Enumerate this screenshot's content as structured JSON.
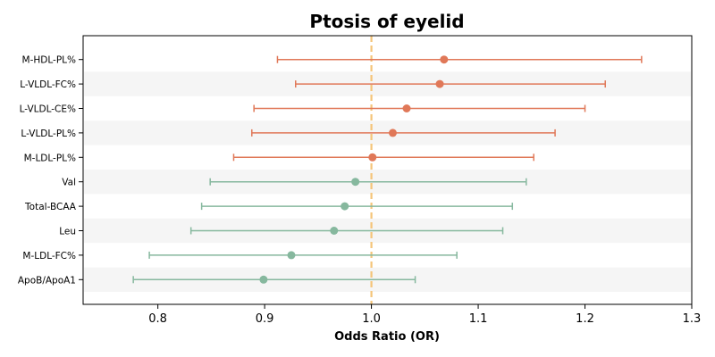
{
  "chart_data": {
    "type": "forest",
    "title": "Ptosis of eyelid",
    "xlabel": "Odds Ratio (OR)",
    "ylabel": "",
    "xlim": [
      0.73,
      1.3
    ],
    "xticks": [
      0.8,
      0.9,
      1.0,
      1.1,
      1.2,
      1.3
    ],
    "xtick_labels": [
      "0.8",
      "0.9",
      "1.0",
      "1.1",
      "1.2",
      "1.3"
    ],
    "reference_line": 1.0,
    "reference_line_color": "#f5c57a",
    "colors": {
      "positive": "#e07858",
      "negative": "#86b89e",
      "band": "#f5f5f5"
    },
    "rows": [
      {
        "label": "M-HDL-PL%",
        "or": 1.068,
        "lower": 0.912,
        "upper": 1.253,
        "group": "positive"
      },
      {
        "label": "L-VLDL-FC%",
        "or": 1.064,
        "lower": 0.929,
        "upper": 1.219,
        "group": "positive"
      },
      {
        "label": "L-VLDL-CE%",
        "or": 1.033,
        "lower": 0.89,
        "upper": 1.2,
        "group": "positive"
      },
      {
        "label": "L-VLDL-PL%",
        "or": 1.02,
        "lower": 0.888,
        "upper": 1.172,
        "group": "positive"
      },
      {
        "label": "M-LDL-PL%",
        "or": 1.001,
        "lower": 0.871,
        "upper": 1.152,
        "group": "positive"
      },
      {
        "label": "Val",
        "or": 0.985,
        "lower": 0.849,
        "upper": 1.145,
        "group": "negative"
      },
      {
        "label": "Total-BCAA",
        "or": 0.975,
        "lower": 0.841,
        "upper": 1.132,
        "group": "negative"
      },
      {
        "label": "Leu",
        "or": 0.965,
        "lower": 0.831,
        "upper": 1.123,
        "group": "negative"
      },
      {
        "label": "M-LDL-FC%",
        "or": 0.925,
        "lower": 0.792,
        "upper": 1.08,
        "group": "negative"
      },
      {
        "label": "ApoB/ApoA1",
        "or": 0.899,
        "lower": 0.777,
        "upper": 1.041,
        "group": "negative"
      }
    ]
  }
}
